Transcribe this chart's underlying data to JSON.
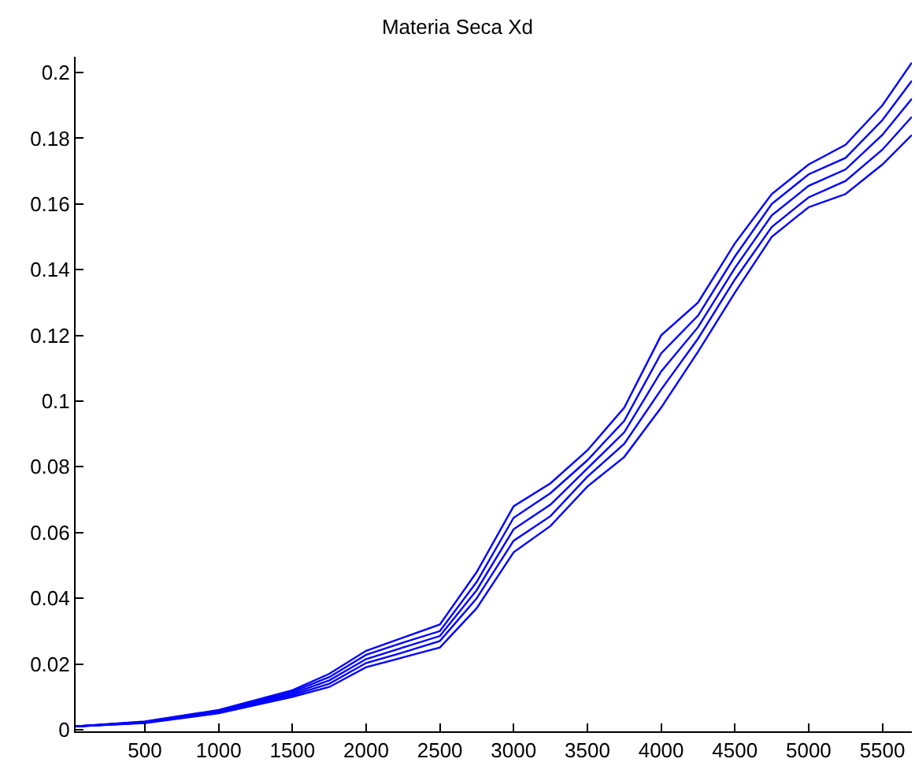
{
  "chart_data": {
    "type": "line",
    "title": "Materia Seca Xd",
    "x": [
      30,
      500,
      1000,
      1500,
      1750,
      2000,
      2250,
      2500,
      2750,
      3000,
      3250,
      3500,
      3750,
      4000,
      4250,
      4500,
      4750,
      5000,
      5250,
      5500,
      5700
    ],
    "series": [
      {
        "color": "#0000ff",
        "values": [
          0.001,
          0.0025,
          0.006,
          0.012,
          0.017,
          0.024,
          0.028,
          0.032,
          0.048,
          0.068,
          0.075,
          0.085,
          0.098,
          0.12,
          0.13,
          0.148,
          0.163,
          0.172,
          0.178,
          0.19,
          0.203
        ]
      },
      {
        "color": "#0000ff",
        "values": [
          0.001,
          0.0024,
          0.0058,
          0.0115,
          0.016,
          0.0228,
          0.0265,
          0.03,
          0.045,
          0.0645,
          0.072,
          0.082,
          0.094,
          0.1145,
          0.126,
          0.144,
          0.16,
          0.169,
          0.174,
          0.1855,
          0.1975
        ]
      },
      {
        "color": "#0000ff",
        "values": [
          0.001,
          0.0022,
          0.0055,
          0.011,
          0.015,
          0.0215,
          0.025,
          0.0285,
          0.0425,
          0.061,
          0.0685,
          0.0795,
          0.0905,
          0.109,
          0.1225,
          0.1405,
          0.1565,
          0.1655,
          0.1705,
          0.181,
          0.192
        ]
      },
      {
        "color": "#0000ff",
        "values": [
          0.001,
          0.0021,
          0.0053,
          0.0105,
          0.014,
          0.0203,
          0.0235,
          0.027,
          0.04,
          0.0575,
          0.065,
          0.077,
          0.087,
          0.1035,
          0.119,
          0.137,
          0.153,
          0.162,
          0.167,
          0.1765,
          0.1865
        ]
      },
      {
        "color": "#0000ff",
        "values": [
          0.001,
          0.002,
          0.005,
          0.01,
          0.013,
          0.019,
          0.022,
          0.025,
          0.037,
          0.054,
          0.062,
          0.074,
          0.083,
          0.098,
          0.115,
          0.133,
          0.15,
          0.159,
          0.163,
          0.172,
          0.181
        ]
      }
    ],
    "xlim": [
      30,
      5700
    ],
    "xticks": [
      500,
      1000,
      1500,
      2000,
      2500,
      3000,
      3500,
      4000,
      4500,
      5000,
      5500
    ],
    "ylim": [
      -0.0005,
      0.2048
    ],
    "yticks": [
      0,
      0.02,
      0.04,
      0.06,
      0.08,
      0.1,
      0.12,
      0.14,
      0.16,
      0.18,
      0.2
    ],
    "grid": false,
    "line_style": "solid",
    "marker": "none"
  }
}
